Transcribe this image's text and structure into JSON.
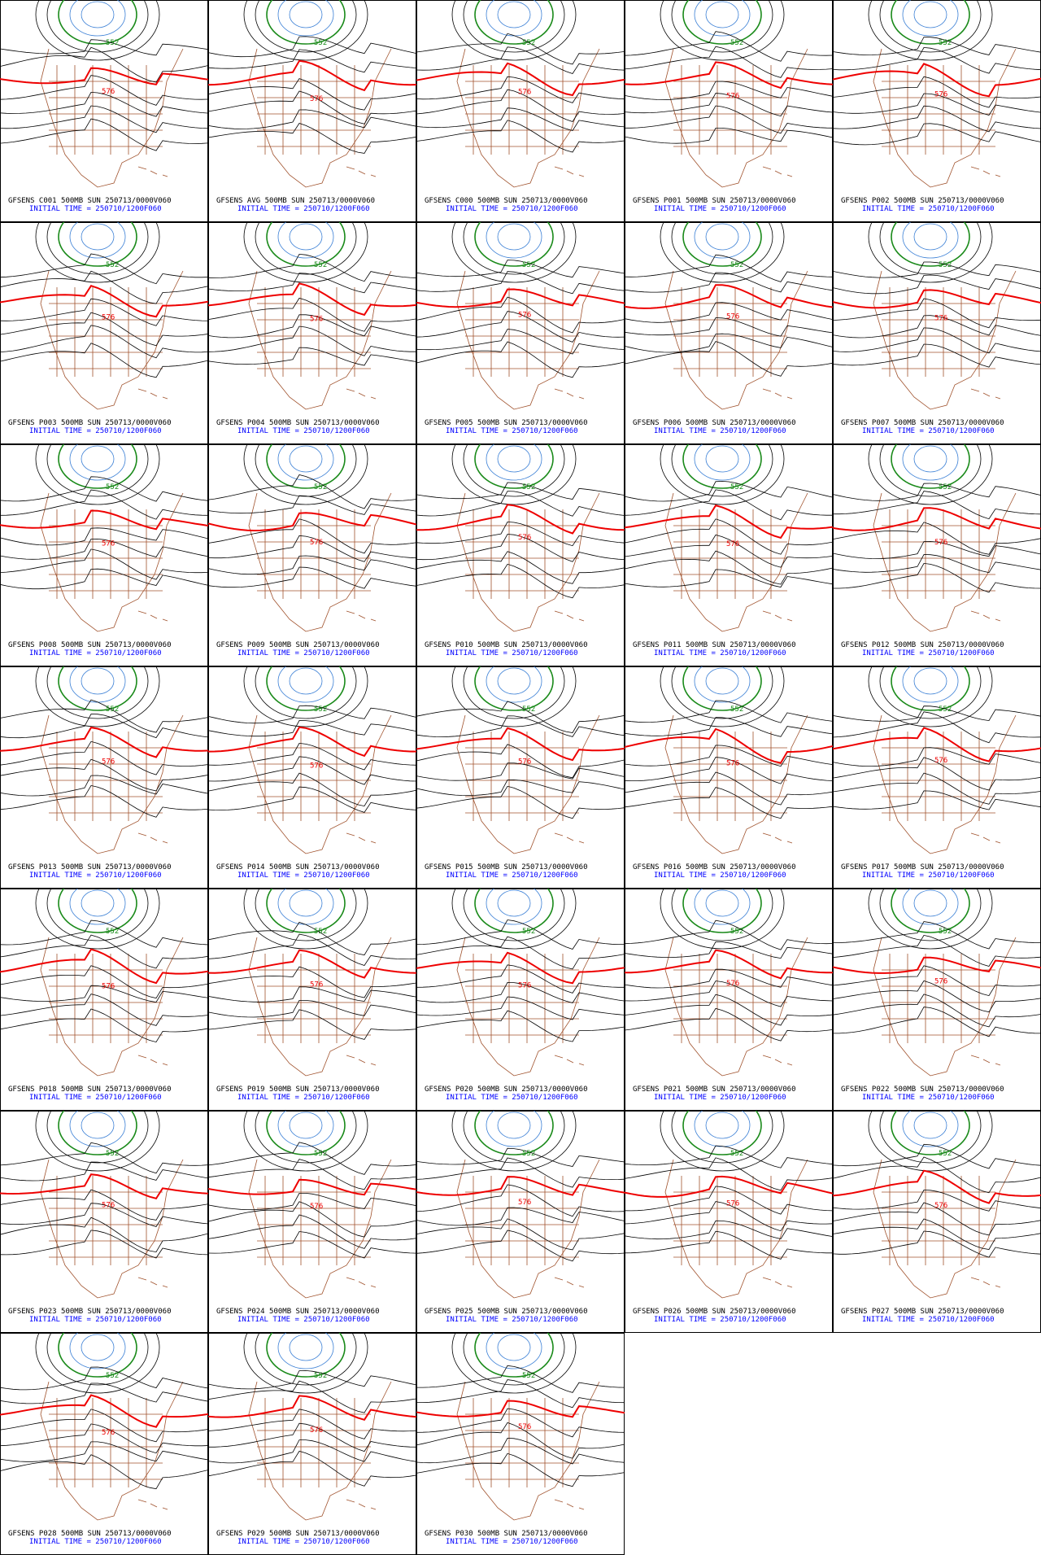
{
  "panels": [
    {
      "title": "GFSENS C001 500MB SUN 250713/0000V060",
      "initial_time": "INITIAL TIME = 250710/1200F060",
      "contour_labels": [
        "552",
        "576"
      ]
    },
    {
      "title": "GFSENS AVG 500MB SUN 250713/0000V060",
      "initial_time": "INITIAL TIME = 250710/1200F060",
      "contour_labels": [
        "552",
        "576"
      ]
    },
    {
      "title": "GFSENS C000 500MB SUN 250713/0000V060",
      "initial_time": "INITIAL TIME = 250710/1200F060",
      "contour_labels": [
        "552",
        "576"
      ]
    },
    {
      "title": "GFSENS P001 500MB SUN 250713/0000V060",
      "initial_time": "INITIAL TIME = 250710/1200F060",
      "contour_labels": [
        "552",
        "576"
      ]
    },
    {
      "title": "GFSENS P002 500MB SUN 250713/0000V060",
      "initial_time": "INITIAL TIME = 250710/1200F060",
      "contour_labels": [
        "552",
        "576"
      ]
    },
    {
      "title": "GFSENS P003 500MB SUN 250713/0000V060",
      "initial_time": "INITIAL TIME = 250710/1200F060",
      "contour_labels": [
        "552",
        "576"
      ]
    },
    {
      "title": "GFSENS P004 500MB SUN 250713/0000V060",
      "initial_time": "INITIAL TIME = 250710/1200F060",
      "contour_labels": [
        "552",
        "576"
      ]
    },
    {
      "title": "GFSENS P005 500MB SUN 250713/0000V060",
      "initial_time": "INITIAL TIME = 250710/1200F060",
      "contour_labels": [
        "552",
        "576"
      ]
    },
    {
      "title": "GFSENS P006 500MB SUN 250713/0000V060",
      "initial_time": "INITIAL TIME = 250710/1200F060",
      "contour_labels": [
        "552",
        "576"
      ]
    },
    {
      "title": "GFSENS P007 500MB SUN 250713/0000V060",
      "initial_time": "INITIAL TIME = 250710/1200F060",
      "contour_labels": [
        "552",
        "576"
      ]
    },
    {
      "title": "GFSENS P008 500MB SUN 250713/0000V060",
      "initial_time": "INITIAL TIME = 250710/1200F060",
      "contour_labels": [
        "552",
        "576"
      ]
    },
    {
      "title": "GFSENS P009 500MB SUN 250713/0000V060",
      "initial_time": "INITIAL TIME = 250710/1200F060",
      "contour_labels": [
        "552",
        "576"
      ]
    },
    {
      "title": "GFSENS P010 500MB SUN 250713/0000V060",
      "initial_time": "INITIAL TIME = 250710/1200F060",
      "contour_labels": [
        "552",
        "576"
      ]
    },
    {
      "title": "GFSENS P011 500MB SUN 250713/0000V060",
      "initial_time": "INITIAL TIME = 250710/1200F060",
      "contour_labels": [
        "552",
        "576"
      ]
    },
    {
      "title": "GFSENS P012 500MB SUN 250713/0000V060",
      "initial_time": "INITIAL TIME = 250710/1200F060",
      "contour_labels": [
        "552",
        "576"
      ]
    },
    {
      "title": "GFSENS P013 500MB SUN 250713/0000V060",
      "initial_time": "INITIAL TIME = 250710/1200F060",
      "contour_labels": [
        "552",
        "576"
      ]
    },
    {
      "title": "GFSENS P014 500MB SUN 250713/0000V060",
      "initial_time": "INITIAL TIME = 250710/1200F060",
      "contour_labels": [
        "552",
        "576"
      ]
    },
    {
      "title": "GFSENS P015 500MB SUN 250713/0000V060",
      "initial_time": "INITIAL TIME = 250710/1200F060",
      "contour_labels": [
        "552",
        "576"
      ]
    },
    {
      "title": "GFSENS P016 500MB SUN 250713/0000V060",
      "initial_time": "INITIAL TIME = 250710/1200F060",
      "contour_labels": [
        "552",
        "576"
      ]
    },
    {
      "title": "GFSENS P017 500MB SUN 250713/0000V060",
      "initial_time": "INITIAL TIME = 250710/1200F060",
      "contour_labels": [
        "552",
        "576"
      ]
    },
    {
      "title": "GFSENS P018 500MB SUN 250713/0000V060",
      "initial_time": "INITIAL TIME = 250710/1200F060",
      "contour_labels": [
        "552",
        "576"
      ]
    },
    {
      "title": "GFSENS P019 500MB SUN 250713/0000V060",
      "initial_time": "INITIAL TIME = 250710/1200F060",
      "contour_labels": [
        "552",
        "576"
      ]
    },
    {
      "title": "GFSENS P020 500MB SUN 250713/0000V060",
      "initial_time": "INITIAL TIME = 250710/1200F060",
      "contour_labels": [
        "552",
        "576"
      ]
    },
    {
      "title": "GFSENS P021 500MB SUN 250713/0000V060",
      "initial_time": "INITIAL TIME = 250710/1200F060",
      "contour_labels": [
        "552",
        "576"
      ]
    },
    {
      "title": "GFSENS P022 500MB SUN 250713/0000V060",
      "initial_time": "INITIAL TIME = 250710/1200F060",
      "contour_labels": [
        "552",
        "576"
      ]
    },
    {
      "title": "GFSENS P023 500MB SUN 250713/0000V060",
      "initial_time": "INITIAL TIME = 250710/1200F060",
      "contour_labels": [
        "552",
        "576"
      ]
    },
    {
      "title": "GFSENS P024 500MB SUN 250713/0000V060",
      "initial_time": "INITIAL TIME = 250710/1200F060",
      "contour_labels": [
        "552",
        "576"
      ]
    },
    {
      "title": "GFSENS P025 500MB SUN 250713/0000V060",
      "initial_time": "INITIAL TIME = 250710/1200F060",
      "contour_labels": [
        "552",
        "576"
      ]
    },
    {
      "title": "GFSENS P026 500MB SUN 250713/0000V060",
      "initial_time": "INITIAL TIME = 250710/1200F060",
      "contour_labels": [
        "552",
        "576"
      ]
    },
    {
      "title": "GFSENS P027 500MB SUN 250713/0000V060",
      "initial_time": "INITIAL TIME = 250710/1200F060",
      "contour_labels": [
        "552",
        "576"
      ]
    },
    {
      "title": "GFSENS P028 500MB SUN 250713/0000V060",
      "initial_time": "INITIAL TIME = 250710/1200F060",
      "contour_labels": [
        "552",
        "576"
      ]
    },
    {
      "title": "GFSENS P029 500MB SUN 250713/0000V060",
      "initial_time": "INITIAL TIME = 250710/1200F060",
      "contour_labels": [
        "552",
        "576"
      ]
    },
    {
      "title": "GFSENS P030 500MB SUN 250713/0000V060",
      "initial_time": "INITIAL TIME = 250710/1200F060",
      "contour_labels": [
        "552",
        "576"
      ]
    }
  ]
}
